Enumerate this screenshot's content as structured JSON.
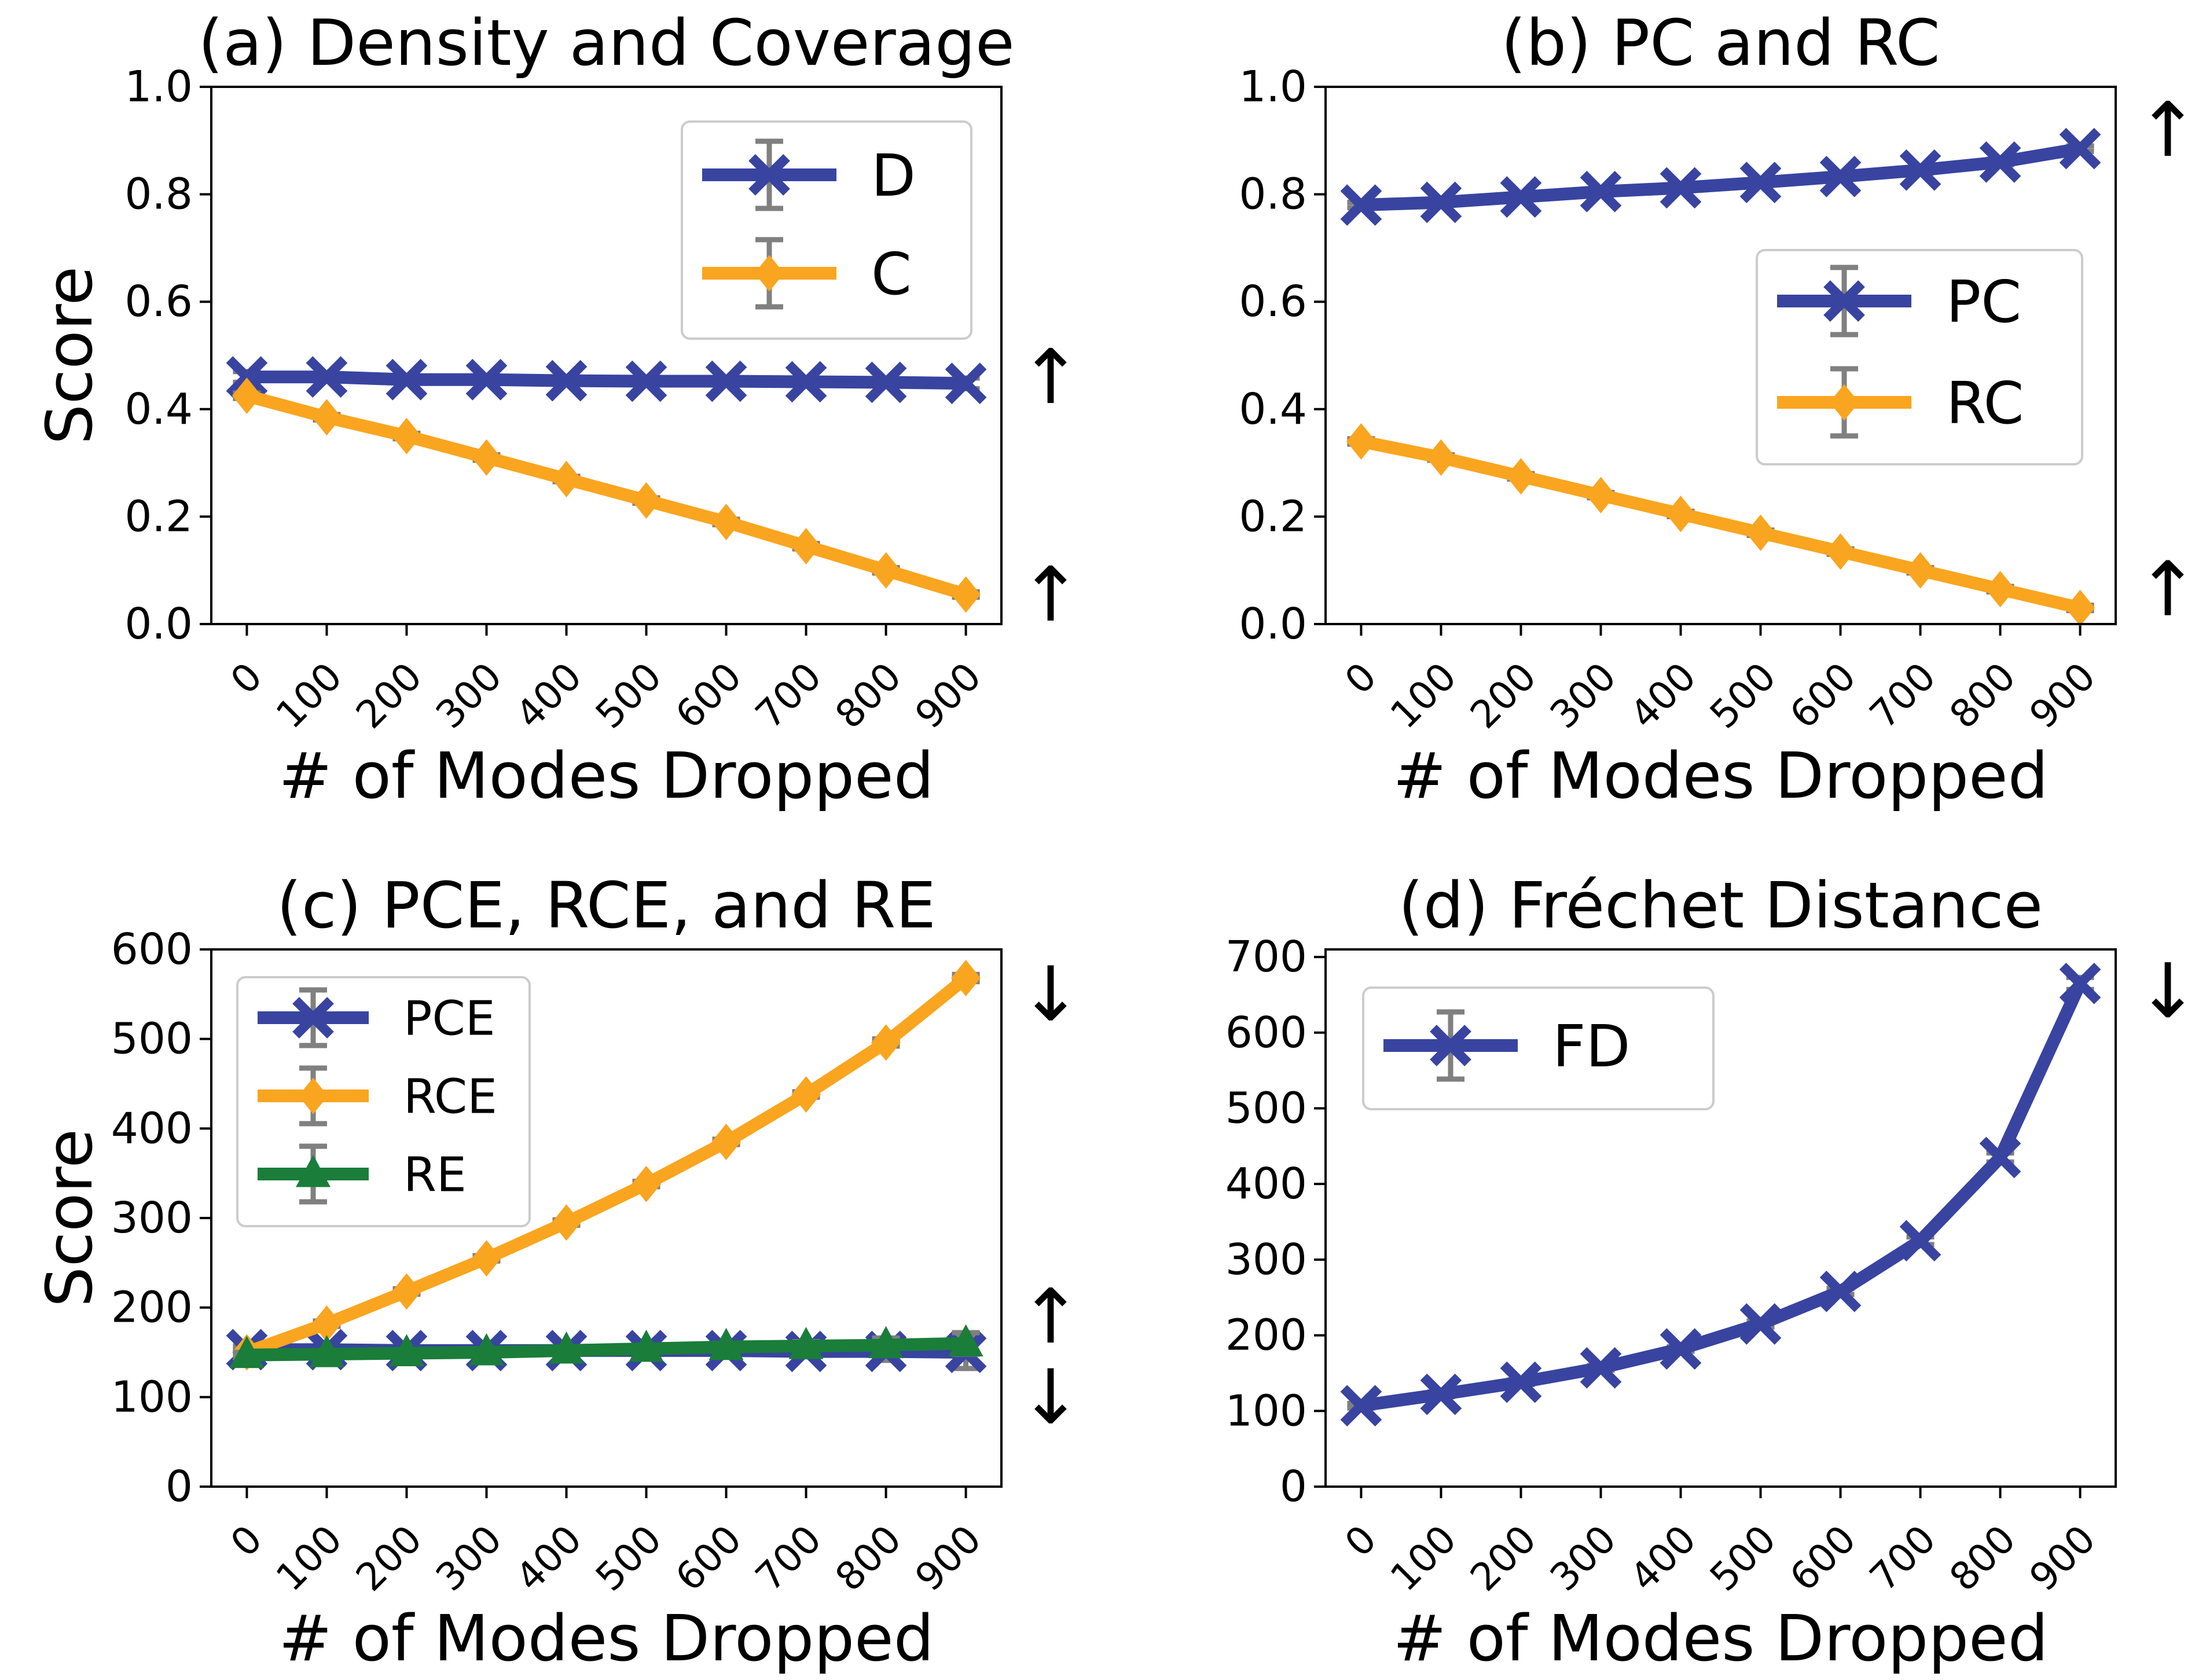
{
  "chart_data": [
    {
      "type": "line",
      "title": "(a) Density and Coverage",
      "xlabel": "# of Modes Dropped",
      "ylabel": "Score",
      "categories": [
        "0",
        "100",
        "200",
        "300",
        "400",
        "500",
        "600",
        "700",
        "800",
        "900"
      ],
      "ylim": [
        0,
        1.0
      ],
      "yticks": [
        "0.0",
        "0.2",
        "0.4",
        "0.6",
        "0.8",
        "1.0"
      ],
      "legend_position": "top-right",
      "series": [
        {
          "name": "D",
          "marker": "x",
          "color": "#3844a0",
          "values": [
            0.46,
            0.46,
            0.455,
            0.455,
            0.453,
            0.452,
            0.452,
            0.451,
            0.45,
            0.448
          ],
          "errors": [
            0.01,
            0.005,
            0.005,
            0.005,
            0.005,
            0.005,
            0.005,
            0.005,
            0.005,
            0.01
          ]
        },
        {
          "name": "C",
          "marker": "diamond",
          "color": "#f9a51f",
          "values": [
            0.425,
            0.385,
            0.35,
            0.31,
            0.27,
            0.23,
            0.19,
            0.145,
            0.1,
            0.055
          ],
          "errors": [
            0.005,
            0.005,
            0.005,
            0.005,
            0.005,
            0.005,
            0.005,
            0.005,
            0.005,
            0.005
          ]
        }
      ],
      "arrows": [
        {
          "symbol": "↑",
          "at": 0.46
        },
        {
          "symbol": "↑",
          "at": 0.055
        }
      ]
    },
    {
      "type": "line",
      "title": "(b) PC and RC",
      "xlabel": "# of Modes Dropped",
      "ylabel": "",
      "categories": [
        "0",
        "100",
        "200",
        "300",
        "400",
        "500",
        "600",
        "700",
        "800",
        "900"
      ],
      "ylim": [
        0,
        1.0
      ],
      "yticks": [
        "0.0",
        "0.2",
        "0.4",
        "0.6",
        "0.8",
        "1.0"
      ],
      "legend_position": "center-right",
      "series": [
        {
          "name": "PC",
          "marker": "x",
          "color": "#3844a0",
          "values": [
            0.78,
            0.785,
            0.795,
            0.805,
            0.812,
            0.822,
            0.833,
            0.845,
            0.86,
            0.885
          ],
          "errors": [
            0.005,
            0.005,
            0.005,
            0.005,
            0.005,
            0.005,
            0.005,
            0.005,
            0.005,
            0.005
          ]
        },
        {
          "name": "RC",
          "marker": "diamond",
          "color": "#f9a51f",
          "values": [
            0.34,
            0.31,
            0.275,
            0.24,
            0.205,
            0.17,
            0.135,
            0.1,
            0.065,
            0.03
          ],
          "errors": [
            0.005,
            0.005,
            0.005,
            0.005,
            0.005,
            0.005,
            0.005,
            0.005,
            0.005,
            0.005
          ]
        }
      ],
      "arrows": [
        {
          "symbol": "↑",
          "at": 0.92
        },
        {
          "symbol": "↑",
          "at": 0.065
        }
      ]
    },
    {
      "type": "line",
      "title": "(c) PCE, RCE, and RE",
      "xlabel": "# of Modes Dropped",
      "ylabel": "Score",
      "categories": [
        "0",
        "100",
        "200",
        "300",
        "400",
        "500",
        "600",
        "700",
        "800",
        "900"
      ],
      "ylim": [
        0,
        600
      ],
      "yticks": [
        "0",
        "100",
        "200",
        "300",
        "400",
        "500",
        "600"
      ],
      "legend_position": "top-left",
      "series": [
        {
          "name": "PCE",
          "marker": "x",
          "color": "#3844a0",
          "values": [
            153,
            153,
            152,
            152,
            152,
            152,
            152,
            151,
            151,
            150
          ],
          "errors": [
            4,
            4,
            4,
            4,
            4,
            4,
            5,
            6,
            10,
            18
          ]
        },
        {
          "name": "RCE",
          "marker": "diamond",
          "color": "#f9a51f",
          "values": [
            150,
            182,
            218,
            255,
            295,
            338,
            385,
            438,
            496,
            568
          ],
          "errors": [
            3,
            3,
            3,
            3,
            3,
            3,
            3,
            3,
            4,
            4
          ]
        },
        {
          "name": "RE",
          "marker": "triangle",
          "color": "#1a7d3a",
          "values": [
            147,
            148,
            149,
            150,
            152,
            154,
            156,
            157,
            158,
            160
          ],
          "errors": [
            3,
            3,
            3,
            3,
            3,
            3,
            4,
            5,
            8,
            12
          ]
        }
      ],
      "arrows": [
        {
          "symbol": "↓",
          "at": 550
        },
        {
          "symbol": "↑",
          "at": 190
        },
        {
          "symbol": "↓",
          "at": 100
        }
      ]
    },
    {
      "type": "line",
      "title": "(d) Fréchet Distance",
      "xlabel": "# of Modes Dropped",
      "ylabel": "",
      "categories": [
        "0",
        "100",
        "200",
        "300",
        "400",
        "500",
        "600",
        "700",
        "800",
        "900"
      ],
      "ylim": [
        0,
        710
      ],
      "yticks": [
        "0",
        "100",
        "200",
        "300",
        "400",
        "500",
        "600",
        "700"
      ],
      "legend_position": "top-left",
      "series": [
        {
          "name": "FD",
          "marker": "x",
          "color": "#3844a0",
          "values": [
            107,
            122,
            138,
            157,
            182,
            215,
            258,
            325,
            435,
            665
          ],
          "errors": [
            3,
            3,
            3,
            3,
            3,
            4,
            4,
            5,
            6,
            8
          ]
        }
      ],
      "arrows": [
        {
          "symbol": "↓",
          "at": 655
        }
      ]
    }
  ]
}
